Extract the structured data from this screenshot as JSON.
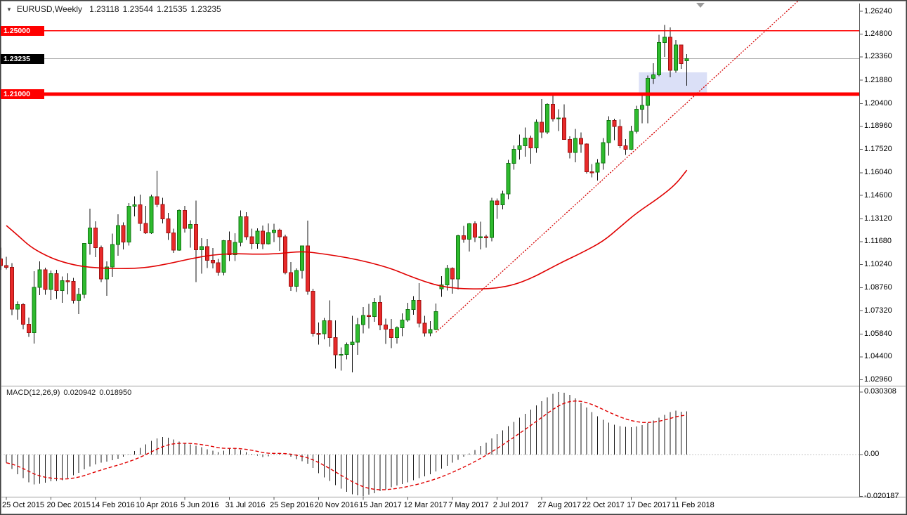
{
  "header": {
    "dropdown_icon": "▼",
    "symbol": "EURUSD,Weekly",
    "open": "1.23118",
    "high": "1.23544",
    "low": "1.21535",
    "close": "1.23235"
  },
  "indicator_label": {
    "name": "MACD(12,26,9)",
    "macd_value": "0.020942",
    "signal_value": "0.018950"
  },
  "price_axis": {
    "ticks": [
      "1.26240",
      "1.24800",
      "1.23360",
      "1.21880",
      "1.20400",
      "1.18960",
      "1.17520",
      "1.16040",
      "1.14600",
      "1.13120",
      "1.11680",
      "1.10240",
      "1.08760",
      "1.07320",
      "1.05840",
      "1.04400",
      "1.02960"
    ],
    "current_price_label": "1.23235",
    "level_labels": [
      "1.25000",
      "1.21000"
    ]
  },
  "macd_axis": {
    "ticks": [
      "0.030308",
      "0.00",
      "-0.020187"
    ]
  },
  "time_axis": {
    "labels": [
      {
        "text": "25 Oct 2015",
        "index": 0
      },
      {
        "text": "20 Dec 2015",
        "index": 8
      },
      {
        "text": "14 Feb 2016",
        "index": 16
      },
      {
        "text": "10 Apr 2016",
        "index": 24
      },
      {
        "text": "5 Jun 2016",
        "index": 32
      },
      {
        "text": "31 Jul 2016",
        "index": 40
      },
      {
        "text": "25 Sep 2016",
        "index": 48
      },
      {
        "text": "20 Nov 2016",
        "index": 56
      },
      {
        "text": "15 Jan 2017",
        "index": 64
      },
      {
        "text": "12 Mar 2017",
        "index": 72
      },
      {
        "text": "7 May 2017",
        "index": 80
      },
      {
        "text": "2 Jul 2017",
        "index": 88
      },
      {
        "text": "27 Aug 2017",
        "index": 96
      },
      {
        "text": "22 Oct 2017",
        "index": 104
      },
      {
        "text": "17 Dec 2017",
        "index": 112
      },
      {
        "text": "11 Feb 2018",
        "index": 120
      }
    ]
  },
  "colors": {
    "up_fill": "#2ebb2e",
    "up_border": "#117711",
    "down_fill": "#e82a2a",
    "down_border": "#9e1111",
    "wick": "#111111",
    "ma_line": "#e00000",
    "trendline": "#d40000",
    "level_red": "#ff0000",
    "zone_fill": "#dbe0f7",
    "current_price_line": "#a8a8a8",
    "current_price_box_bg": "#000000",
    "level_box_bg": "#ff0000",
    "histogram": "#1a1a1a",
    "signal_line": "#e00000",
    "separator": "#9c9c9c",
    "axis_line": "#555555"
  },
  "chart_data": {
    "type": "candlestick",
    "title": "EURUSD,Weekly",
    "symbol": "EURUSD",
    "timeframe": "Weekly",
    "x_axis": {
      "start_week": "2015-10-25",
      "interval": "1 week",
      "count": 123
    },
    "price_y_domain": [
      1.0262,
      1.2673
    ],
    "current_price": 1.23235,
    "current_bar": {
      "open": 1.23118,
      "high": 1.23544,
      "low": 1.21535,
      "close": 1.23235
    },
    "left_edge_candle": [
      1.106,
      1.113,
      1.099,
      1.1017
    ],
    "candles": [
      [
        1.1017,
        1.1073,
        1.0993,
        1.1006
      ],
      [
        1.1006,
        1.1032,
        1.0703,
        1.0742
      ],
      [
        1.0742,
        1.079,
        1.0674,
        1.0771
      ],
      [
        1.0771,
        1.078,
        1.0616,
        1.0645
      ],
      [
        1.0645,
        1.0689,
        1.0566,
        1.0593
      ],
      [
        1.0593,
        1.0981,
        1.0524,
        1.088
      ],
      [
        1.088,
        1.1043,
        1.083,
        1.099
      ],
      [
        1.099,
        1.1004,
        1.0832,
        1.0866
      ],
      [
        1.0866,
        1.0985,
        1.08,
        1.0966
      ],
      [
        1.0966,
        1.099,
        1.0805,
        1.086
      ],
      [
        1.086,
        1.0947,
        1.0781,
        1.0921
      ],
      [
        1.0921,
        1.0969,
        1.0835,
        1.0916
      ],
      [
        1.0916,
        1.094,
        1.0778,
        1.0796
      ],
      [
        1.0796,
        1.0874,
        1.0711,
        1.0834
      ],
      [
        1.0834,
        1.116,
        1.081,
        1.1156
      ],
      [
        1.1156,
        1.1376,
        1.1085,
        1.1255
      ],
      [
        1.1255,
        1.1296,
        1.107,
        1.113
      ],
      [
        1.113,
        1.1143,
        1.0912,
        1.0932
      ],
      [
        1.0932,
        1.1043,
        1.0825,
        1.1007
      ],
      [
        1.1007,
        1.1218,
        1.0945,
        1.1151
      ],
      [
        1.1151,
        1.1342,
        1.1079,
        1.127
      ],
      [
        1.127,
        1.129,
        1.112,
        1.1166
      ],
      [
        1.1166,
        1.1412,
        1.1144,
        1.1391
      ],
      [
        1.1391,
        1.1454,
        1.1327,
        1.1401
      ],
      [
        1.1401,
        1.1465,
        1.1234,
        1.1283
      ],
      [
        1.1283,
        1.1395,
        1.1216,
        1.1224
      ],
      [
        1.1224,
        1.1465,
        1.1217,
        1.1451
      ],
      [
        1.1451,
        1.1616,
        1.1385,
        1.1403
      ],
      [
        1.1403,
        1.1445,
        1.1283,
        1.1312
      ],
      [
        1.1312,
        1.1349,
        1.118,
        1.1224
      ],
      [
        1.1224,
        1.1249,
        1.1097,
        1.1115
      ],
      [
        1.1115,
        1.1371,
        1.111,
        1.1366
      ],
      [
        1.1366,
        1.1394,
        1.1225,
        1.1252
      ],
      [
        1.1252,
        1.1304,
        1.113,
        1.1277
      ],
      [
        1.1277,
        1.1428,
        1.0912,
        1.1117
      ],
      [
        1.1117,
        1.1189,
        1.0966,
        1.1136
      ],
      [
        1.1136,
        1.1186,
        1.1002,
        1.105
      ],
      [
        1.105,
        1.1127,
        1.1,
        1.1035
      ],
      [
        1.1035,
        1.1059,
        1.0952,
        1.0975
      ],
      [
        1.0975,
        1.1179,
        1.0954,
        1.1175
      ],
      [
        1.1175,
        1.1233,
        1.1045,
        1.1086
      ],
      [
        1.1086,
        1.1222,
        1.1046,
        1.1163
      ],
      [
        1.1163,
        1.1365,
        1.114,
        1.1325
      ],
      [
        1.1325,
        1.1355,
        1.118,
        1.1198
      ],
      [
        1.1198,
        1.125,
        1.1122,
        1.1156
      ],
      [
        1.1156,
        1.1253,
        1.1123,
        1.1234
      ],
      [
        1.1234,
        1.127,
        1.1122,
        1.1155
      ],
      [
        1.1155,
        1.1284,
        1.1149,
        1.1226
      ],
      [
        1.1226,
        1.128,
        1.1165,
        1.124
      ],
      [
        1.124,
        1.125,
        1.1109,
        1.1199
      ],
      [
        1.1199,
        1.1212,
        1.0962,
        1.0972
      ],
      [
        1.0972,
        1.104,
        1.0858,
        1.0885
      ],
      [
        1.0885,
        1.1,
        1.0851,
        1.0986
      ],
      [
        1.0986,
        1.1143,
        1.0935,
        1.1141
      ],
      [
        1.1141,
        1.13,
        1.0832,
        1.0855
      ],
      [
        1.0855,
        1.087,
        1.0569,
        1.0588
      ],
      [
        1.0588,
        1.0658,
        1.0518,
        1.0586
      ],
      [
        1.0586,
        1.0685,
        1.055,
        1.0668
      ],
      [
        1.0668,
        1.0796,
        1.0505,
        1.0561
      ],
      [
        1.0561,
        1.067,
        1.0366,
        1.0453
      ],
      [
        1.0453,
        1.0499,
        1.0352,
        1.0456
      ],
      [
        1.0456,
        1.0531,
        1.0423,
        1.0517
      ],
      [
        1.0517,
        1.07,
        1.0341,
        1.0532
      ],
      [
        1.0532,
        1.0685,
        1.0454,
        1.0643
      ],
      [
        1.0643,
        1.0755,
        1.0589,
        1.0702
      ],
      [
        1.0702,
        1.0775,
        1.062,
        1.0695
      ],
      [
        1.0695,
        1.0812,
        1.0662,
        1.0784
      ],
      [
        1.0784,
        1.0829,
        1.0608,
        1.0642
      ],
      [
        1.0642,
        1.0682,
        1.0521,
        1.0614
      ],
      [
        1.0614,
        1.0679,
        1.0494,
        1.0561
      ],
      [
        1.0561,
        1.0632,
        1.0525,
        1.0623
      ],
      [
        1.0623,
        1.0714,
        1.057,
        1.0672
      ],
      [
        1.0672,
        1.0782,
        1.0662,
        1.0739
      ],
      [
        1.0739,
        1.0824,
        1.0705,
        1.0797
      ],
      [
        1.0797,
        1.0906,
        1.0626,
        1.0652
      ],
      [
        1.0652,
        1.0699,
        1.0569,
        1.059
      ],
      [
        1.059,
        1.0667,
        1.057,
        1.0613
      ],
      [
        1.0613,
        1.0778,
        1.0608,
        1.0725
      ],
      [
        1.087,
        1.0951,
        1.082,
        1.0895
      ],
      [
        1.0895,
        1.1022,
        1.086,
        1.0998
      ],
      [
        1.0998,
        1.1005,
        1.0839,
        1.0932
      ],
      [
        1.0932,
        1.1212,
        1.0866,
        1.1206
      ],
      [
        1.1206,
        1.1268,
        1.1161,
        1.1183
      ],
      [
        1.1183,
        1.1285,
        1.1105,
        1.1281
      ],
      [
        1.1281,
        1.1296,
        1.1166,
        1.1197
      ],
      [
        1.1197,
        1.1295,
        1.1118,
        1.1198
      ],
      [
        1.1198,
        1.1212,
        1.1131,
        1.1194
      ],
      [
        1.1194,
        1.1445,
        1.117,
        1.1425
      ],
      [
        1.1425,
        1.144,
        1.1312,
        1.1401
      ],
      [
        1.1401,
        1.1489,
        1.1371,
        1.1469
      ],
      [
        1.1469,
        1.1684,
        1.1436,
        1.1663
      ],
      [
        1.1663,
        1.1777,
        1.1623,
        1.1752
      ],
      [
        1.1752,
        1.1845,
        1.1688,
        1.1773
      ],
      [
        1.1773,
        1.1889,
        1.1704,
        1.1822
      ],
      [
        1.1822,
        1.1838,
        1.1661,
        1.1761
      ],
      [
        1.1761,
        1.1941,
        1.173,
        1.1923
      ],
      [
        1.1923,
        1.207,
        1.1823,
        1.186
      ],
      [
        1.186,
        1.2042,
        1.1848,
        1.2035
      ],
      [
        1.2035,
        1.2092,
        1.1926,
        1.1945
      ],
      [
        1.1945,
        1.2005,
        1.1867,
        1.195
      ],
      [
        1.195,
        1.2036,
        1.1811,
        1.1814
      ],
      [
        1.1814,
        1.1833,
        1.1695,
        1.1732
      ],
      [
        1.1732,
        1.188,
        1.1669,
        1.182
      ],
      [
        1.182,
        1.1858,
        1.1729,
        1.1785
      ],
      [
        1.1785,
        1.1789,
        1.1598,
        1.1609
      ],
      [
        1.1609,
        1.1658,
        1.1574,
        1.1608
      ],
      [
        1.1608,
        1.169,
        1.1553,
        1.1665
      ],
      [
        1.1665,
        1.1822,
        1.1622,
        1.1793
      ],
      [
        1.1793,
        1.1961,
        1.1712,
        1.1933
      ],
      [
        1.1933,
        1.1945,
        1.1809,
        1.1897
      ],
      [
        1.1897,
        1.194,
        1.1758,
        1.1774
      ],
      [
        1.1774,
        1.1815,
        1.1717,
        1.1752
      ],
      [
        1.1752,
        1.1901,
        1.1748,
        1.1865
      ],
      [
        1.1865,
        1.2028,
        1.1852,
        1.2005
      ],
      [
        1.2005,
        1.2089,
        1.1916,
        1.203
      ],
      [
        1.203,
        1.2218,
        1.1915,
        1.22
      ],
      [
        1.22,
        1.2296,
        1.2164,
        1.2222
      ],
      [
        1.2222,
        1.2475,
        1.2214,
        1.2426
      ],
      [
        1.2426,
        1.2537,
        1.2335,
        1.246
      ],
      [
        1.246,
        1.2522,
        1.2206,
        1.2251
      ],
      [
        1.2251,
        1.2443,
        1.2236,
        1.2411
      ],
      [
        1.2411,
        1.2413,
        1.226,
        1.2293
      ],
      [
        1.23118,
        1.23544,
        1.21535,
        1.23235
      ]
    ],
    "ma_line": {
      "points": [
        [
          0,
          1.127
        ],
        [
          2,
          1.121
        ],
        [
          4,
          1.1145
        ],
        [
          6,
          1.11
        ],
        [
          9,
          1.105
        ],
        [
          13,
          1.1013
        ],
        [
          17,
          1.1
        ],
        [
          21,
          1.0997
        ],
        [
          25,
          1.1003
        ],
        [
          29,
          1.1028
        ],
        [
          33,
          1.106
        ],
        [
          37,
          1.1085
        ],
        [
          41,
          1.1093
        ],
        [
          45,
          1.1088
        ],
        [
          49,
          1.1092
        ],
        [
          53,
          1.1108
        ],
        [
          57,
          1.109
        ],
        [
          61,
          1.1068
        ],
        [
          65,
          1.1038
        ],
        [
          69,
          1.0998
        ],
        [
          72,
          1.0955
        ],
        [
          75,
          1.0915
        ],
        [
          78,
          1.0885
        ],
        [
          81,
          1.0872
        ],
        [
          85,
          1.0868
        ],
        [
          88,
          1.0875
        ],
        [
          91,
          1.0895
        ],
        [
          94,
          1.0935
        ],
        [
          97,
          1.099
        ],
        [
          100,
          1.1045
        ],
        [
          103,
          1.1095
        ],
        [
          107,
          1.117
        ],
        [
          110,
          1.126
        ],
        [
          113,
          1.135
        ],
        [
          117,
          1.1445
        ],
        [
          120,
          1.153
        ],
        [
          122,
          1.162
        ]
      ]
    },
    "trendline": {
      "i1": 77,
      "p1": 1.0595,
      "i2": 142,
      "p2": 1.2691
    },
    "rectangle_zone": {
      "i1": 113.4,
      "i2": 125.6,
      "p1": 1.2105,
      "p2": 1.2238
    },
    "hlines": [
      {
        "price": 1.25,
        "label": "1.25000",
        "stroke_width": 1.5
      },
      {
        "price": 1.21,
        "label": "1.21000",
        "stroke_width": 5
      }
    ],
    "macd": {
      "name": "MACD(12,26,9)",
      "macd_y_domain": [
        -0.0201,
        0.033
      ],
      "signal_period": 9,
      "last_macd": 0.020942,
      "last_signal": 0.01895,
      "values": [
        -0.004,
        -0.007,
        -0.0095,
        -0.0115,
        -0.0135,
        -0.0145,
        -0.0142,
        -0.0136,
        -0.013,
        -0.0128,
        -0.0125,
        -0.0115,
        -0.01,
        -0.0088,
        -0.0072,
        -0.0058,
        -0.0047,
        -0.004,
        -0.0034,
        -0.0028,
        -0.002,
        -0.001,
        0.0002,
        0.0016,
        0.0032,
        0.005,
        0.0066,
        0.0078,
        0.0085,
        0.0082,
        0.0073,
        0.0063,
        0.0056,
        0.005,
        0.0043,
        0.0035,
        0.0026,
        0.0018,
        0.0012,
        0.0018,
        0.0028,
        0.003,
        0.0022,
        0.0012,
        0.0004,
        -0.0006,
        -0.0012,
        -0.0008,
        0.0002,
        0.0006,
        0.0,
        -0.001,
        -0.0022,
        -0.0032,
        -0.0045,
        -0.0065,
        -0.009,
        -0.011,
        -0.0128,
        -0.0148,
        -0.0165,
        -0.018,
        -0.0192,
        -0.0198,
        -0.020187,
        -0.0195,
        -0.0188,
        -0.0178,
        -0.0168,
        -0.0158,
        -0.015,
        -0.0143,
        -0.0135,
        -0.0125,
        -0.0115,
        -0.0105,
        -0.0095,
        -0.0082,
        -0.0068,
        -0.0055,
        -0.004,
        -0.0025,
        -0.001,
        0.0005,
        0.0022,
        0.004,
        0.0058,
        0.0078,
        0.0098,
        0.0118,
        0.0138,
        0.0158,
        0.0178,
        0.0198,
        0.0218,
        0.0238,
        0.0258,
        0.0278,
        0.0295,
        0.030308,
        0.0299,
        0.029,
        0.0272,
        0.025,
        0.0228,
        0.0205,
        0.0185,
        0.0168,
        0.0155,
        0.0145,
        0.0138,
        0.0134,
        0.0133,
        0.0136,
        0.0143,
        0.0153,
        0.0165,
        0.0178,
        0.0192,
        0.0205,
        0.0213,
        0.0208,
        0.020942
      ]
    }
  }
}
